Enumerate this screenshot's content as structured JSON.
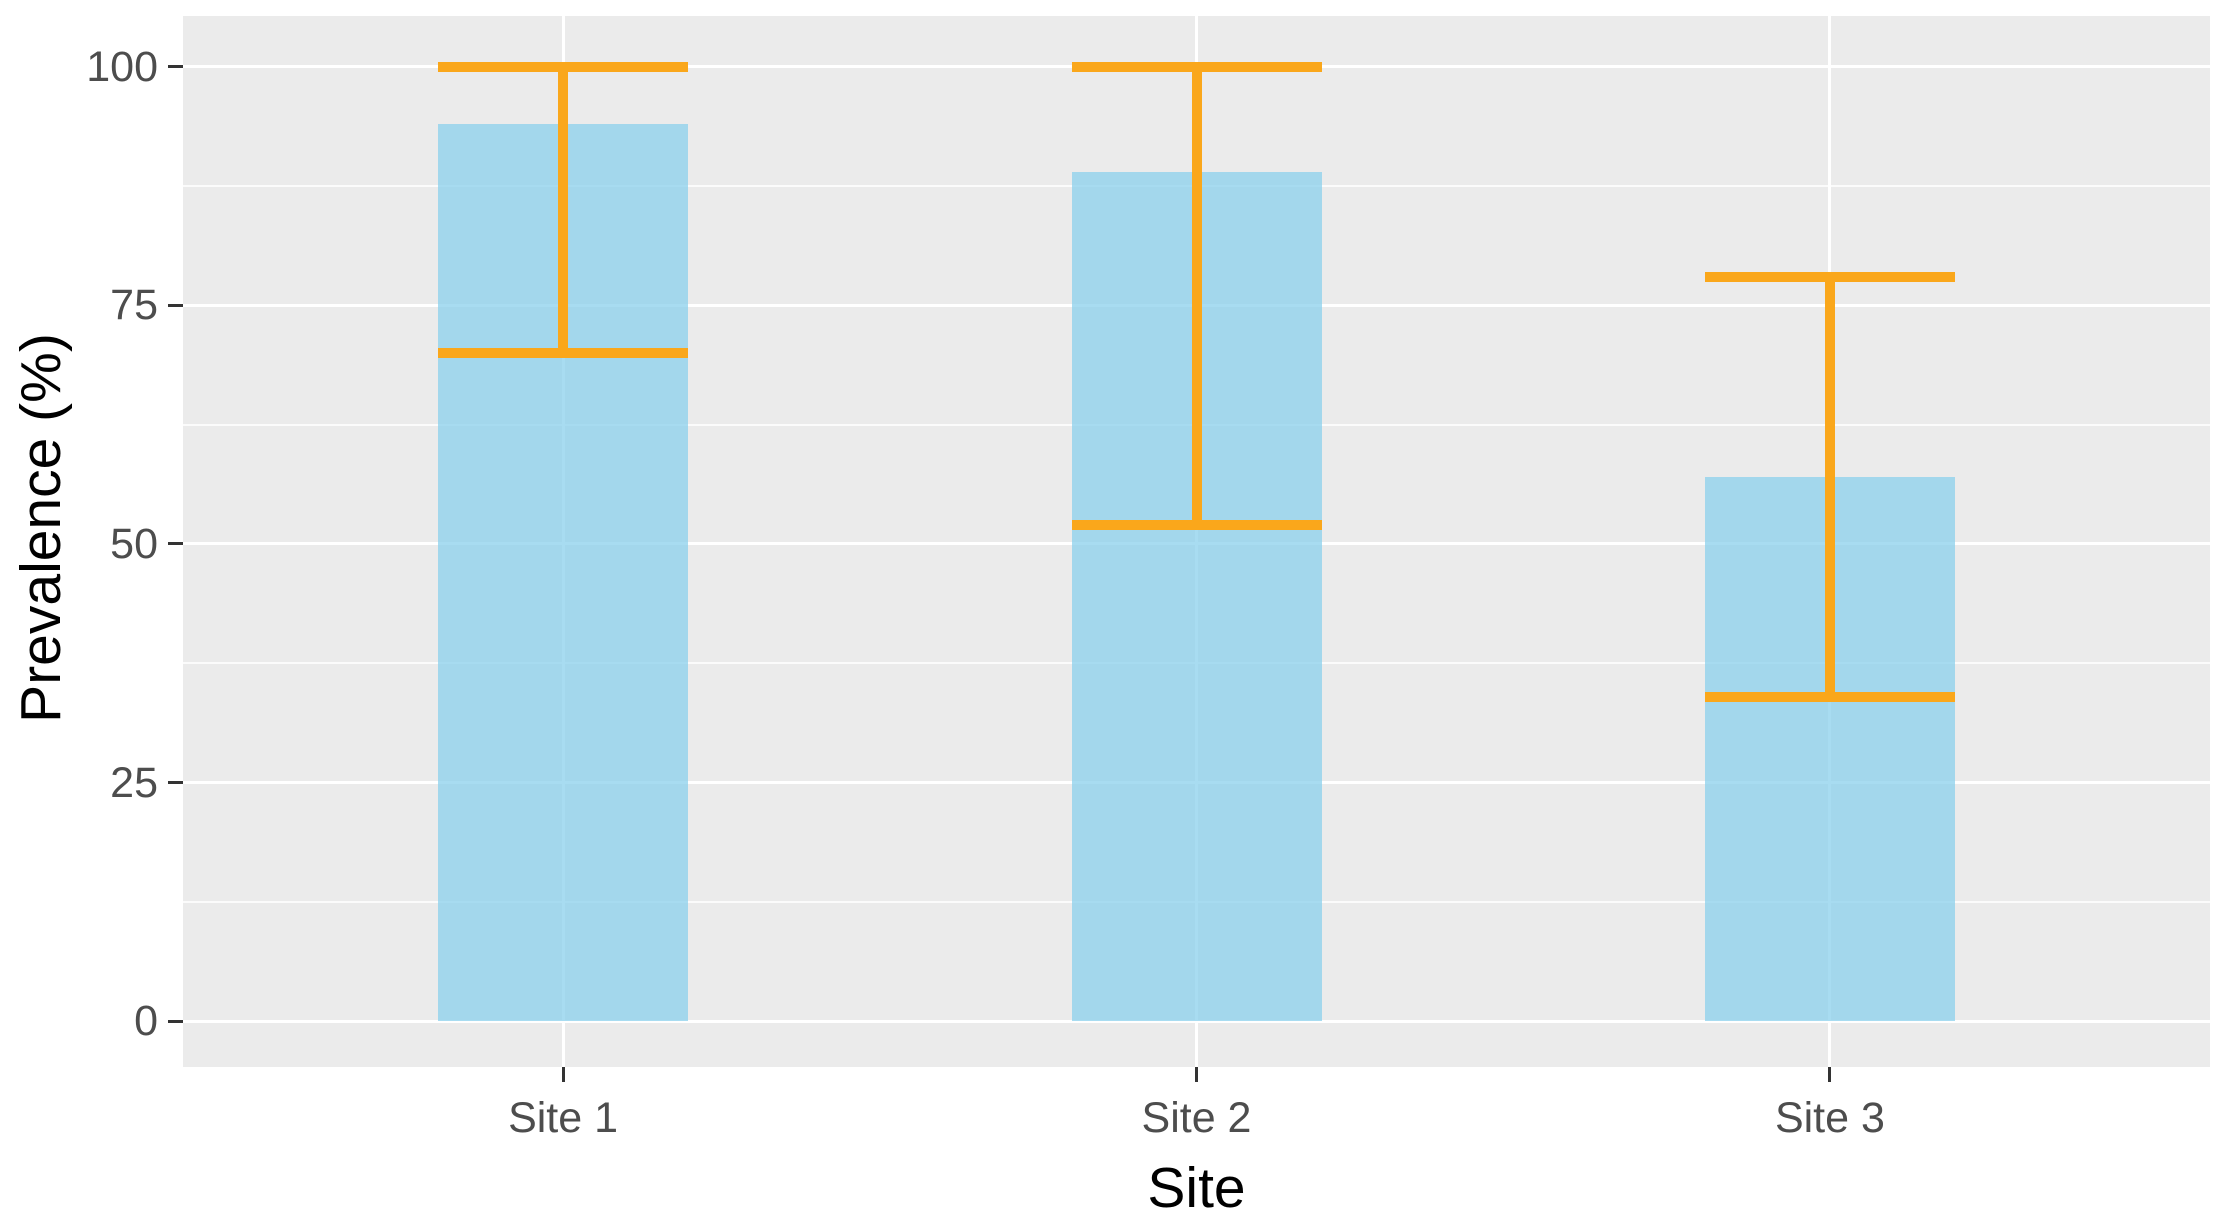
{
  "chart_data": {
    "type": "bar",
    "title": "",
    "categories": [
      "Site 1",
      "Site 2",
      "Site 3"
    ],
    "values": [
      94,
      89,
      57
    ],
    "error_bars": {
      "low": [
        70,
        52,
        34
      ],
      "high": [
        100,
        100,
        78
      ]
    },
    "xlabel": "Site",
    "ylabel": "Prevalence (%)",
    "ylim": [
      -5,
      105
    ],
    "yticks": [
      0,
      25,
      50,
      75,
      100
    ],
    "ytick_labels": [
      "0",
      "25",
      "50",
      "75",
      "100"
    ],
    "minor_gridlines": [
      12.5,
      37.5,
      62.5,
      87.5
    ],
    "grid": "on",
    "legend": "none",
    "colors": {
      "panel_background": "#EBEBEB",
      "gridline": "#FFFFFF",
      "bar_fill": "rgba(135,206,235,0.72)",
      "bar_fill_flat": "#A5D6EB",
      "error_bar": "#FAA71B",
      "tick_mark": "#333333",
      "tick_label": "#4D4D4D",
      "axis_title": "#000000",
      "figure_background": "#FFFFFF"
    }
  }
}
